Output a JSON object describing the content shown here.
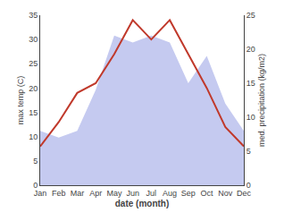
{
  "chart_data": {
    "type": "line",
    "categories": [
      "Jan",
      "Feb",
      "Mar",
      "Apr",
      "May",
      "Jun",
      "Jul",
      "Aug",
      "Sep",
      "Oct",
      "Nov",
      "Dec"
    ],
    "series": [
      {
        "type": "line",
        "color": "#c0392b",
        "values": [
          8,
          13,
          19,
          21,
          27,
          34,
          30,
          34,
          27,
          20,
          12,
          8
        ]
      },
      {
        "type": "area",
        "color": "#c5caf0",
        "axis": "y2",
        "values": [
          8,
          7,
          8,
          14,
          22,
          21,
          22,
          21,
          15,
          19,
          12,
          8
        ]
      }
    ],
    "xlabel": "date (month)",
    "ylabel": "max temp (C)",
    "y2label": "med. precipitation (kg/m2)",
    "ylim": [
      0,
      35
    ],
    "yticks": [
      0,
      5,
      10,
      15,
      20,
      25,
      30,
      35
    ],
    "y2lim": [
      0,
      25
    ],
    "y2ticks": [
      0,
      5,
      10,
      15,
      20,
      25
    ],
    "grid": false
  }
}
